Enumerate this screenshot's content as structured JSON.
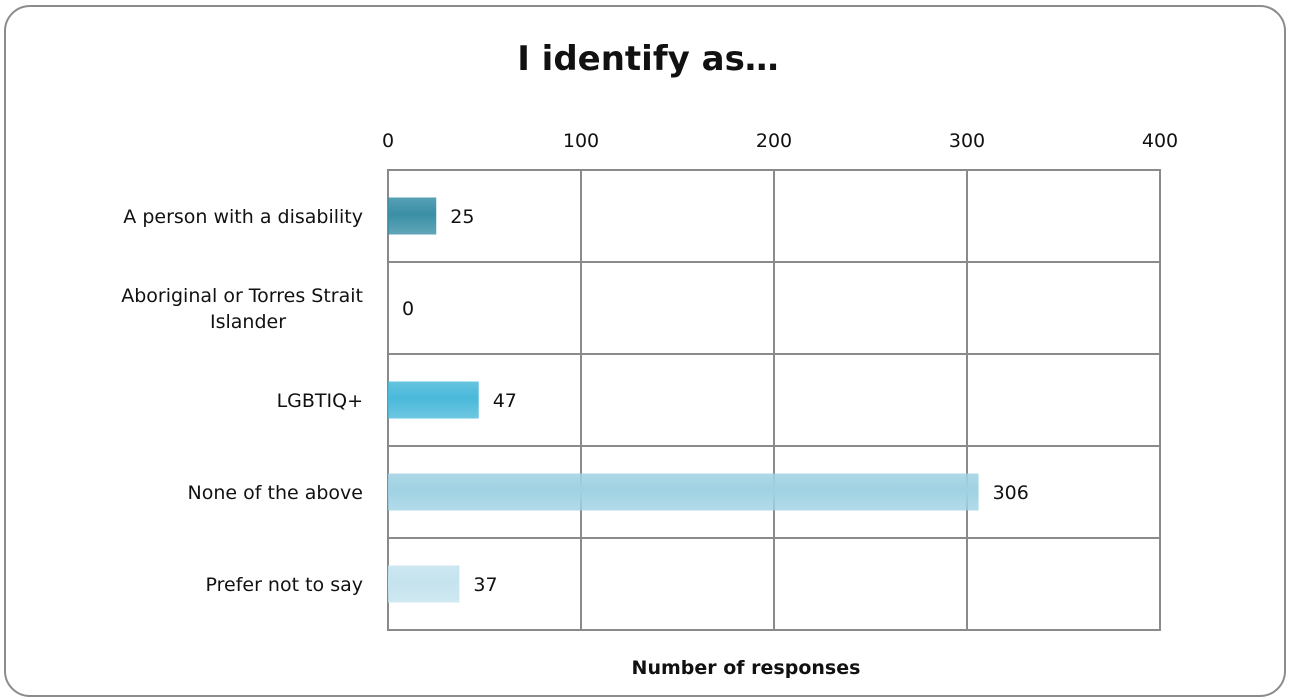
{
  "chart_data": {
    "type": "bar",
    "orientation": "horizontal",
    "title": "I identify as…",
    "xlabel": "Number of responses",
    "ylabel": "",
    "xlim": [
      0,
      400
    ],
    "x_ticks": [
      "0",
      "100",
      "200",
      "300",
      "400"
    ],
    "categories": [
      [
        "A person with a disability"
      ],
      [
        "Aboriginal or Torres Strait",
        "Islander"
      ],
      [
        "LGBTIQ+"
      ],
      [
        "None of the above"
      ],
      [
        "Prefer not to say"
      ]
    ],
    "values": [
      25,
      0,
      47,
      306,
      37
    ],
    "data_labels": [
      "25",
      "0",
      "47",
      "306",
      "37"
    ],
    "bar_colors": [
      "#3a8fa6",
      "#5bb8d4",
      "#4ab9da",
      "#9fd2e3",
      "#c4e3ee"
    ],
    "x_axis_position": "top",
    "grid": true,
    "legend": "none"
  }
}
